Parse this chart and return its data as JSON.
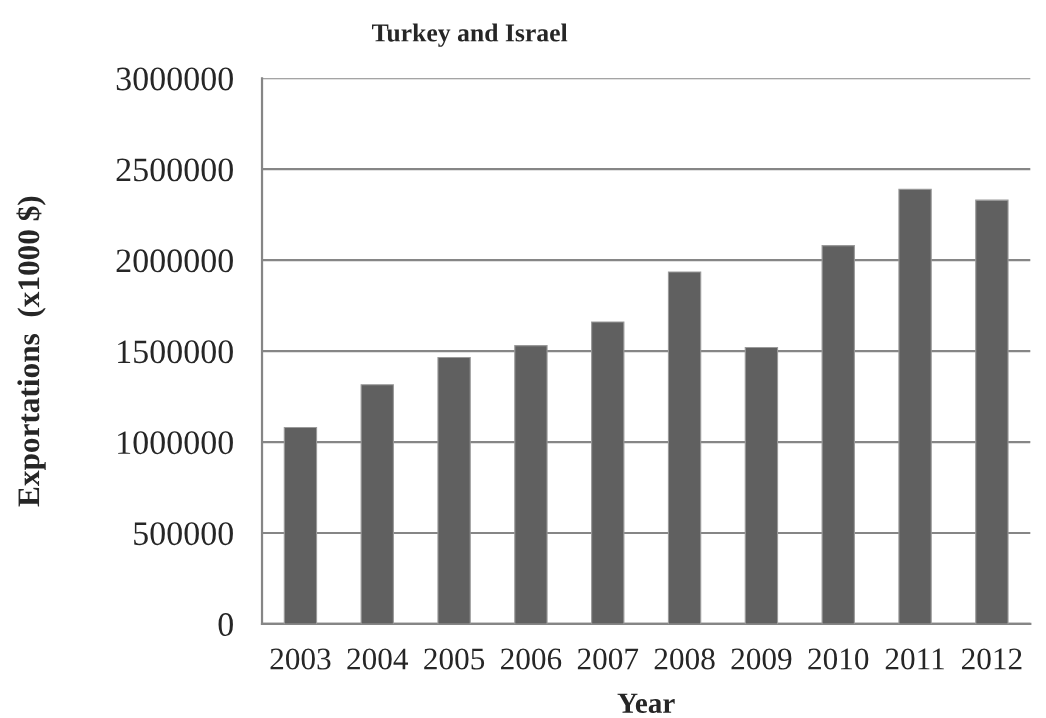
{
  "chart_data": {
    "type": "bar",
    "title": "Turkey and Israel",
    "xlabel": "Year",
    "ylabel": "Exportations  (x1000 $)",
    "categories": [
      "2003",
      "2004",
      "2005",
      "2006",
      "2007",
      "2008",
      "2009",
      "2010",
      "2011",
      "2012"
    ],
    "values": [
      1080000,
      1315000,
      1465000,
      1530000,
      1660000,
      1935000,
      1520000,
      2080000,
      2390000,
      2330000
    ],
    "color": "#606060",
    "ylim": [
      0,
      3000000
    ],
    "yticks": [
      0,
      500000,
      1000000,
      1500000,
      2000000,
      2500000,
      3000000
    ],
    "grid": "y"
  }
}
